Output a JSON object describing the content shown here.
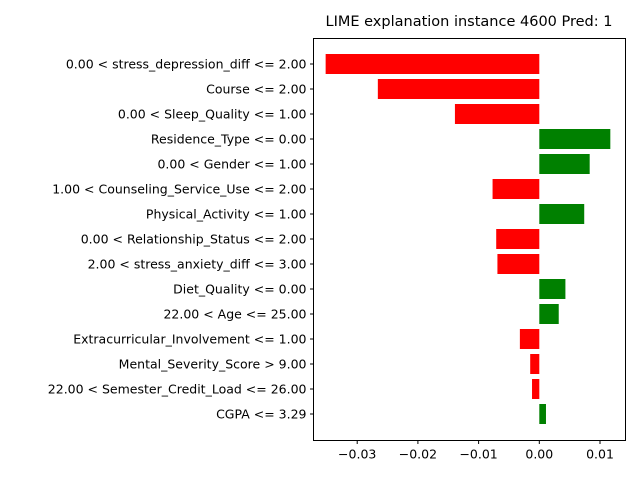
{
  "chart_data": {
    "type": "bar",
    "orientation": "horizontal",
    "title": "LIME explanation instance 4600 Pred: 1",
    "xlabel": "",
    "ylabel": "",
    "xlim": [
      -0.0372,
      0.0142
    ],
    "xticks": [
      {
        "value": -0.03,
        "label": "−0.03"
      },
      {
        "value": -0.02,
        "label": "−0.02"
      },
      {
        "value": -0.01,
        "label": "−0.01"
      },
      {
        "value": 0.0,
        "label": "0.00"
      },
      {
        "value": 0.01,
        "label": "0.01"
      }
    ],
    "grid": false,
    "positive_color": "#008000",
    "negative_color": "#ff0000",
    "categories": [
      "0.00 < stress_depression_diff <= 2.00",
      "Course <= 2.00",
      "0.00 < Sleep_Quality <= 1.00",
      "Residence_Type <= 0.00",
      "0.00 < Gender <= 1.00",
      "1.00 < Counseling_Service_Use <= 2.00",
      "Physical_Activity <= 1.00",
      "0.00 < Relationship_Status <= 2.00",
      "2.00 < stress_anxiety_diff <= 3.00",
      "Diet_Quality <= 0.00",
      "22.00 < Age <= 25.00",
      "Extracurricular_Involvement <= 1.00",
      "Mental_Severity_Score > 9.00",
      "22.00 < Semester_Credit_Load <= 26.00",
      "CGPA <= 3.29"
    ],
    "values": [
      -0.0352,
      -0.0266,
      -0.0139,
      0.0117,
      0.0083,
      -0.0077,
      0.0074,
      -0.0071,
      -0.0069,
      0.0043,
      0.0032,
      -0.0032,
      -0.0015,
      -0.0012,
      0.0011
    ]
  }
}
